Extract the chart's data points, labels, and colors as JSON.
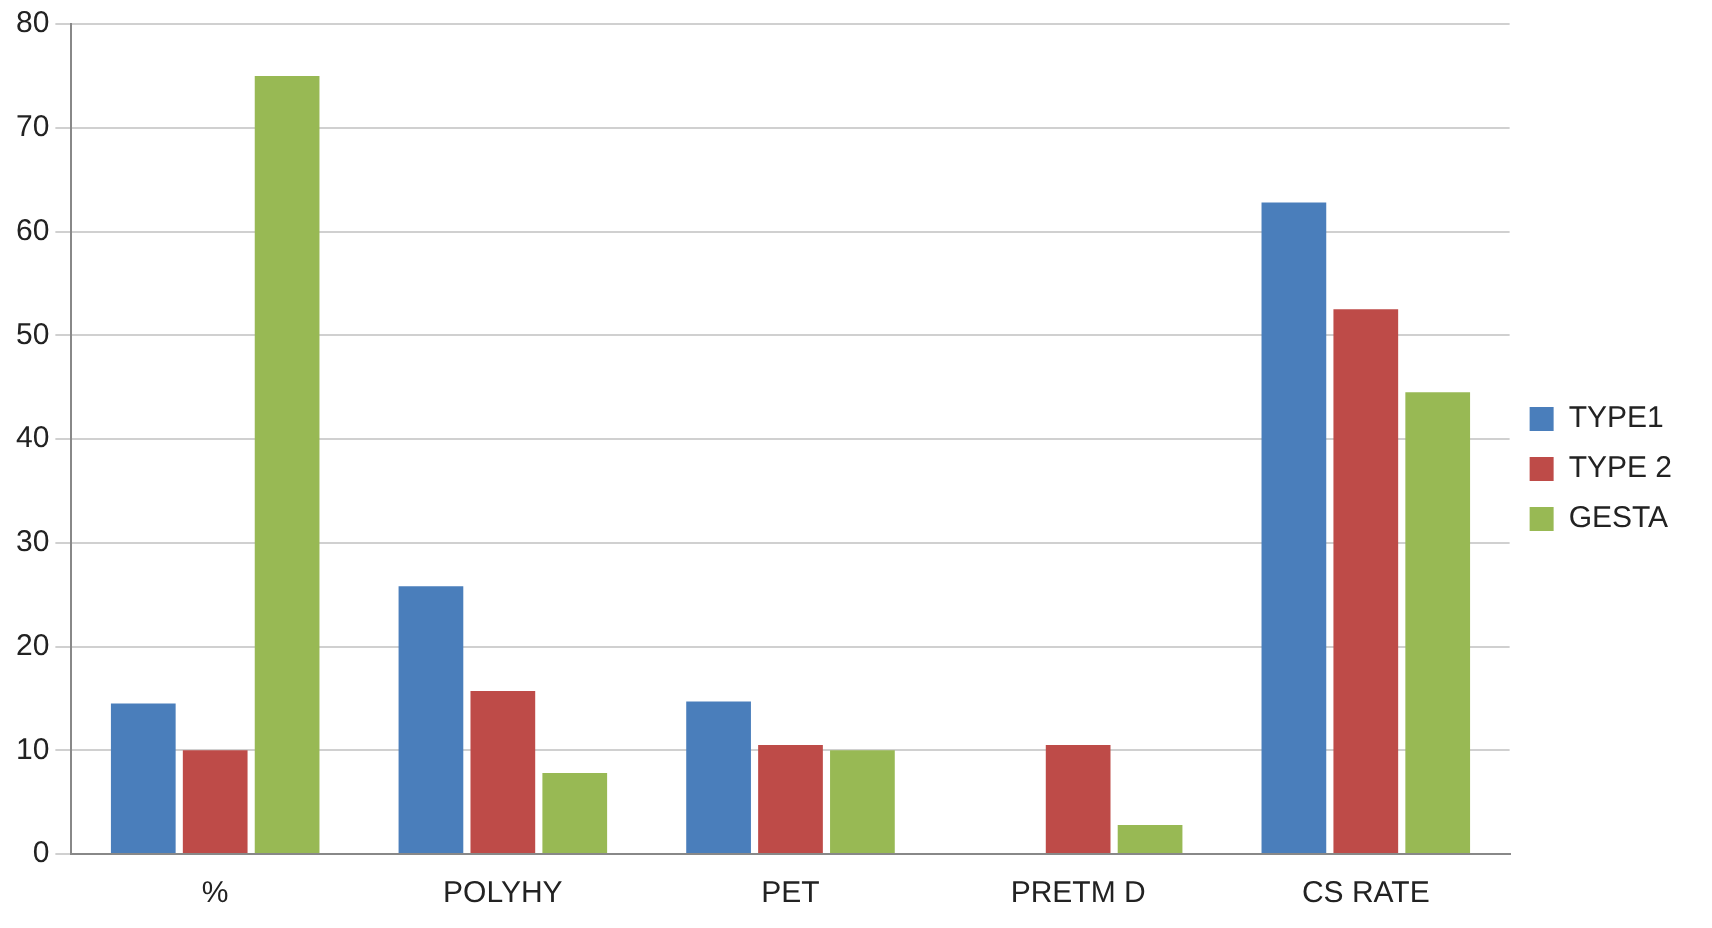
{
  "chart_data": {
    "type": "bar",
    "categories": [
      "%",
      "POLYHY",
      "PET",
      "PRETM D",
      "CS RATE"
    ],
    "series": [
      {
        "name": "TYPE1",
        "color": "#4a7ebb",
        "values": [
          14.5,
          25.8,
          14.7,
          null,
          62.8
        ]
      },
      {
        "name": "TYPE 2",
        "color": "#be4b48",
        "values": [
          10,
          15.7,
          10.5,
          10.5,
          52.5
        ]
      },
      {
        "name": "GESTA",
        "color": "#98b954",
        "values": [
          75,
          7.8,
          10,
          2.8,
          44.5
        ]
      }
    ],
    "ylim": [
      0,
      80
    ],
    "yticks": [
      0,
      10,
      20,
      30,
      40,
      50,
      60,
      70,
      80
    ],
    "grid": "y",
    "legend": "right"
  }
}
